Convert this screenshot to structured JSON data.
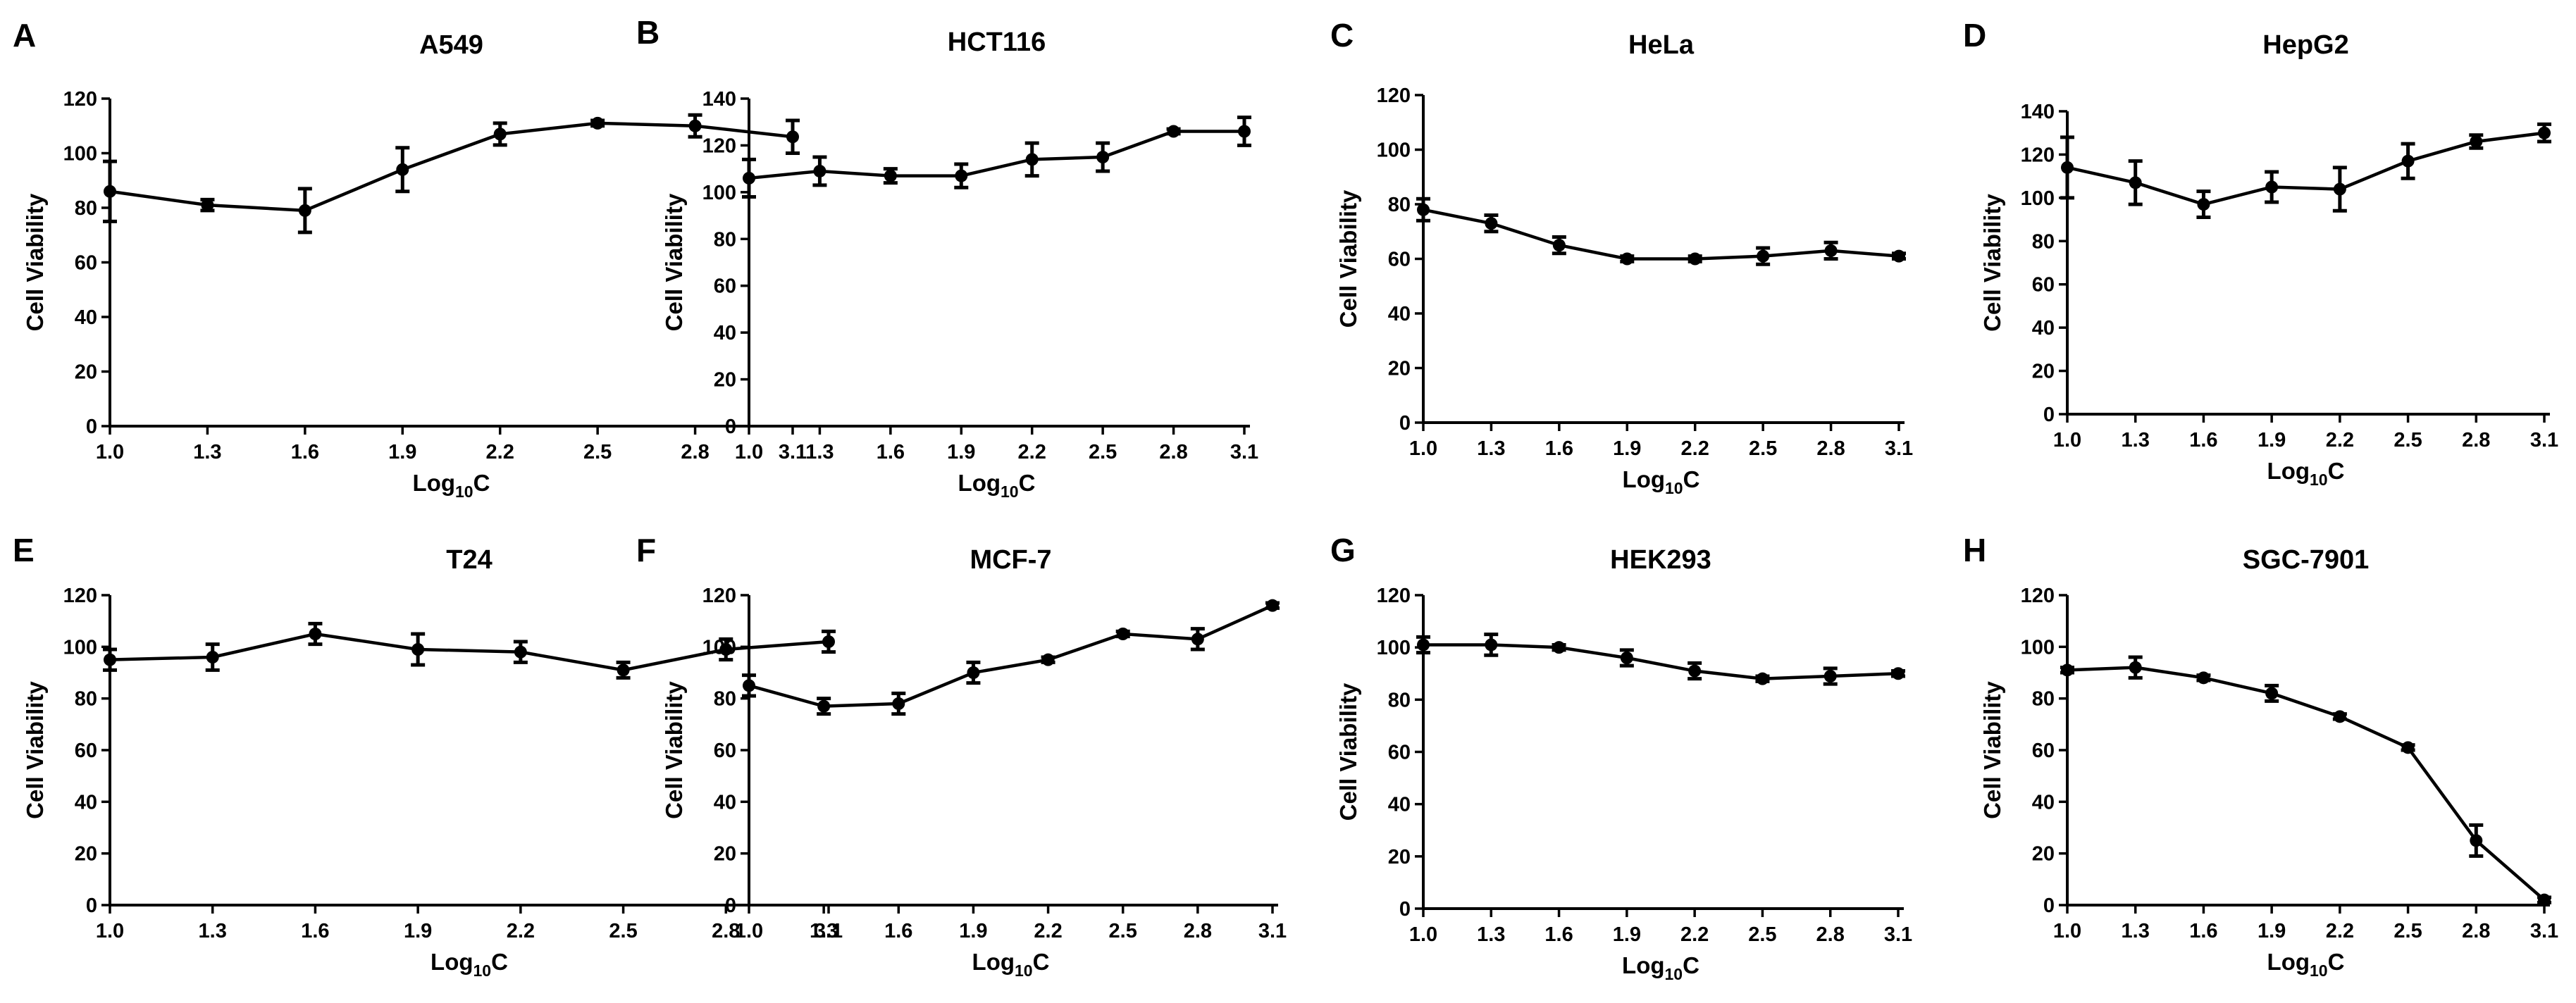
{
  "figure": {
    "x_title_main": "Log",
    "x_title_sub": "10",
    "x_title_end": "C"
  },
  "chart_data": [
    {
      "type": "line",
      "panel": "A",
      "title": "A549",
      "xlabel": "Log10C",
      "ylabel": "Cell Viability",
      "x": [
        1.0,
        1.3,
        1.6,
        1.9,
        2.2,
        2.5,
        2.8,
        3.1
      ],
      "x_tick_labels": [
        "1.0",
        "1.3",
        "1.6",
        "1.9",
        "2.2",
        "2.5",
        "2.8",
        "3.1"
      ],
      "ylim": [
        0,
        120
      ],
      "y_ticks": [
        0,
        20,
        40,
        60,
        80,
        100,
        120
      ],
      "series": [
        {
          "name": "A549",
          "values": [
            86,
            81,
            79,
            94,
            107,
            111,
            110,
            106
          ],
          "errors": [
            11,
            2,
            8,
            8,
            4,
            1,
            4,
            6
          ]
        }
      ]
    },
    {
      "type": "line",
      "panel": "B",
      "title": "HCT116",
      "xlabel": "Log10C",
      "ylabel": "Cell Viability",
      "x": [
        1.0,
        1.3,
        1.6,
        1.9,
        2.2,
        2.5,
        2.8,
        3.1
      ],
      "x_tick_labels": [
        "1.0",
        "1.3",
        "1.6",
        "1.9",
        "2.2",
        "2.5",
        "2.8",
        "3.1"
      ],
      "ylim": [
        0,
        140
      ],
      "y_ticks": [
        0,
        20,
        40,
        60,
        80,
        100,
        120,
        140
      ],
      "series": [
        {
          "name": "HCT116",
          "values": [
            106,
            109,
            107,
            107,
            114,
            115,
            126,
            126
          ],
          "errors": [
            8,
            6,
            3,
            5,
            7,
            6,
            1,
            6
          ]
        }
      ]
    },
    {
      "type": "line",
      "panel": "C",
      "title": "HeLa",
      "xlabel": "Log10C",
      "ylabel": "Cell Viability",
      "x": [
        1.0,
        1.3,
        1.6,
        1.9,
        2.2,
        2.5,
        2.8,
        3.1
      ],
      "x_tick_labels": [
        "1.0",
        "1.3",
        "1.6",
        "1.9",
        "2.2",
        "2.5",
        "2.8",
        "3.1"
      ],
      "ylim": [
        0,
        120
      ],
      "y_ticks": [
        0,
        20,
        40,
        60,
        80,
        100,
        120
      ],
      "series": [
        {
          "name": "HeLa",
          "values": [
            78,
            73,
            65,
            60,
            60,
            61,
            63,
            61
          ],
          "errors": [
            4,
            3,
            3,
            1,
            1,
            3,
            3,
            1
          ]
        }
      ]
    },
    {
      "type": "line",
      "panel": "D",
      "title": "HepG2",
      "xlabel": "Log10C",
      "ylabel": "Cell Viability",
      "x": [
        1.0,
        1.3,
        1.6,
        1.9,
        2.2,
        2.5,
        2.8,
        3.1
      ],
      "x_tick_labels": [
        "1.0",
        "1.3",
        "1.6",
        "1.9",
        "2.2",
        "2.5",
        "2.8",
        "3.1"
      ],
      "ylim": [
        0,
        140
      ],
      "y_ticks": [
        0,
        20,
        40,
        60,
        80,
        100,
        120,
        140
      ],
      "series": [
        {
          "name": "HepG2",
          "values": [
            114,
            107,
            97,
            105,
            104,
            117,
            126,
            130
          ],
          "errors": [
            14,
            10,
            6,
            7,
            10,
            8,
            3,
            4
          ]
        }
      ]
    },
    {
      "type": "line",
      "panel": "E",
      "title": "T24",
      "xlabel": "Log10C",
      "ylabel": "Cell Viability",
      "x": [
        1.0,
        1.3,
        1.6,
        1.9,
        2.2,
        2.5,
        2.8,
        3.1
      ],
      "x_tick_labels": [
        "1.0",
        "1.3",
        "1.6",
        "1.9",
        "2.2",
        "2.5",
        "2.8",
        "3.1"
      ],
      "ylim": [
        0,
        120
      ],
      "y_ticks": [
        0,
        20,
        40,
        60,
        80,
        100,
        120
      ],
      "series": [
        {
          "name": "T24",
          "values": [
            95,
            96,
            105,
            99,
            98,
            91,
            99,
            102
          ],
          "errors": [
            4,
            5,
            4,
            6,
            4,
            3,
            4,
            4
          ]
        }
      ]
    },
    {
      "type": "line",
      "panel": "F",
      "title": "MCF-7",
      "xlabel": "Log10C",
      "ylabel": "Cell Viability",
      "x": [
        1.0,
        1.3,
        1.6,
        1.9,
        2.2,
        2.5,
        2.8,
        3.1
      ],
      "x_tick_labels": [
        "1.0",
        "1.3",
        "1.6",
        "1.9",
        "2.2",
        "2.5",
        "2.8",
        "3.1"
      ],
      "ylim": [
        0,
        120
      ],
      "y_ticks": [
        0,
        20,
        40,
        60,
        80,
        100,
        120
      ],
      "series": [
        {
          "name": "MCF-7",
          "values": [
            85,
            77,
            78,
            90,
            95,
            105,
            103,
            116
          ],
          "errors": [
            4,
            3,
            4,
            4,
            1,
            1,
            4,
            1
          ]
        }
      ]
    },
    {
      "type": "line",
      "panel": "G",
      "title": "HEK293",
      "xlabel": "Log10C",
      "ylabel": "Cell Viability",
      "x": [
        1.0,
        1.3,
        1.6,
        1.9,
        2.2,
        2.5,
        2.8,
        3.1
      ],
      "x_tick_labels": [
        "1.0",
        "1.3",
        "1.6",
        "1.9",
        "2.2",
        "2.5",
        "2.8",
        "3.1"
      ],
      "ylim": [
        0,
        120
      ],
      "y_ticks": [
        0,
        20,
        40,
        60,
        80,
        100,
        120
      ],
      "series": [
        {
          "name": "HEK293",
          "values": [
            101,
            101,
            100,
            96,
            91,
            88,
            89,
            90
          ],
          "errors": [
            3,
            4,
            1,
            3,
            3,
            1,
            3,
            1
          ]
        }
      ]
    },
    {
      "type": "line",
      "panel": "H",
      "title": "SGC-7901",
      "xlabel": "Log10C",
      "ylabel": "Cell Viability",
      "x": [
        1.0,
        1.3,
        1.6,
        1.9,
        2.2,
        2.5,
        2.8,
        3.1
      ],
      "x_tick_labels": [
        "1.0",
        "1.3",
        "1.6",
        "1.9",
        "2.2",
        "2.5",
        "2.8",
        "3.1"
      ],
      "ylim": [
        0,
        120
      ],
      "y_ticks": [
        0,
        20,
        40,
        60,
        80,
        100,
        120
      ],
      "series": [
        {
          "name": "SGC-7901",
          "values": [
            91,
            92,
            88,
            82,
            73,
            61,
            25,
            2
          ],
          "errors": [
            1,
            4,
            1,
            3,
            1,
            1,
            6,
            1
          ]
        }
      ]
    }
  ]
}
